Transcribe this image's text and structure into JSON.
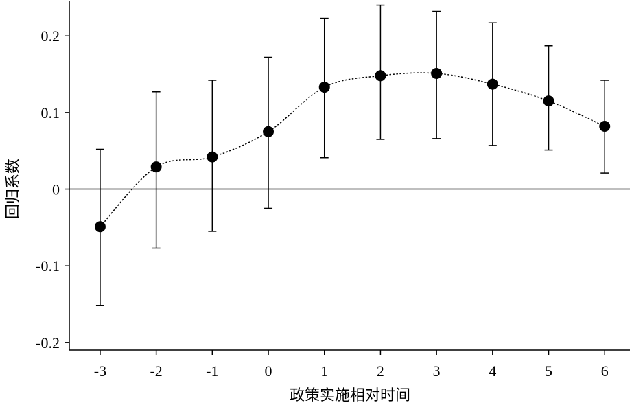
{
  "chart_data": {
    "type": "line",
    "title": "",
    "xlabel": "政策实施相对时间",
    "ylabel": "回归系数",
    "x": [
      -3,
      -2,
      -1,
      0,
      1,
      2,
      3,
      4,
      5,
      6
    ],
    "x_tick_labels": [
      "-3",
      "-2",
      "-1",
      "0",
      "1",
      "2",
      "3",
      "4",
      "5",
      "6"
    ],
    "y_ticks": [
      0.2,
      0.1,
      0,
      -0.1,
      -0.2
    ],
    "y_tick_labels": [
      "0.2",
      "0.1",
      "0",
      "-0.1",
      "-0.2"
    ],
    "xlim": [
      -3.55,
      6.45
    ],
    "ylim": [
      -0.21,
      0.245
    ],
    "reference_line_y": 0,
    "grid": false,
    "series": [
      {
        "values": [
          -0.049,
          0.029,
          0.042,
          0.075,
          0.133,
          0.148,
          0.151,
          0.137,
          0.115,
          0.082
        ],
        "ci_lower": [
          -0.152,
          -0.077,
          -0.055,
          -0.025,
          0.041,
          0.065,
          0.066,
          0.057,
          0.051,
          0.021
        ],
        "ci_upper": [
          0.052,
          0.127,
          0.142,
          0.172,
          0.223,
          0.24,
          0.232,
          0.217,
          0.187,
          0.142
        ],
        "line_style": "dotted",
        "marker": "filled-circle",
        "color": "#000000"
      }
    ]
  }
}
